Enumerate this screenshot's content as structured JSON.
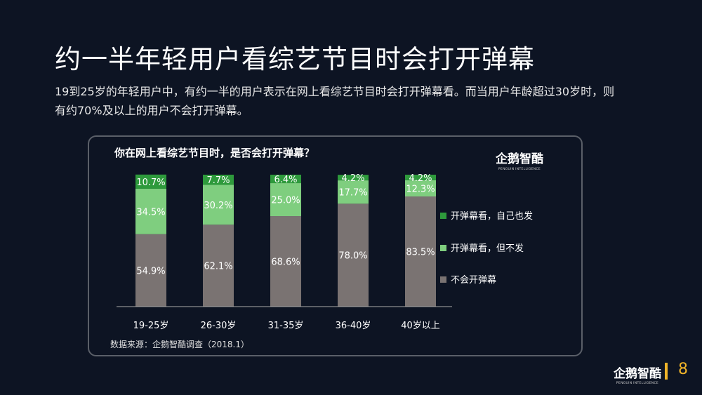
{
  "title": "约一半年轻用户看综艺节目时会打开弹幕",
  "subtitle": "19到25岁的年轻用户中，有约一半的用户表示在网上看综艺节目时会打开弹幕看。而当用户年龄超过30岁时，则有约70%及以上的用户不会打开弹幕。",
  "logo": {
    "main": "企鹅智酷",
    "sub": "PENGUIN INTELLIGENCE"
  },
  "page_number": "8",
  "source": "数据来源：企鹅智酷调查（2018.1）",
  "colors": {
    "accent": "#f0b429",
    "background": "#0d1423"
  },
  "chart_data": {
    "type": "bar",
    "stacked": true,
    "title": "你在网上看综艺节目时，是否会打开弹幕？",
    "categories": [
      "19-25岁",
      "26-30岁",
      "31-35岁",
      "36-40岁",
      "40岁以上"
    ],
    "series": [
      {
        "name": "不会开弹幕",
        "color": "#7a7372",
        "values": [
          54.9,
          62.1,
          68.6,
          78.0,
          83.5
        ],
        "labels": [
          "54.9%",
          "62.1%",
          "68.6%",
          "78.0%",
          "83.5%"
        ]
      },
      {
        "name": "开弹幕看，但不发",
        "color": "#7fce7f",
        "values": [
          34.5,
          30.2,
          25.0,
          17.7,
          12.3
        ],
        "labels": [
          "34.5%",
          "30.2%",
          "25.0%",
          "17.7%",
          "12.3%"
        ]
      },
      {
        "name": "开弹幕看，自己也发",
        "color": "#2e9a3c",
        "values": [
          10.7,
          7.7,
          6.4,
          4.2,
          4.2
        ],
        "labels": [
          "10.7%",
          "7.7%",
          "6.4%",
          "4.2%",
          "4.2%"
        ]
      }
    ],
    "legend_order": [
      "开弹幕看，自己也发",
      "开弹幕看，但不发",
      "不会开弹幕"
    ],
    "legend_position": "right",
    "ylim": [
      0,
      100
    ],
    "grid": false
  }
}
